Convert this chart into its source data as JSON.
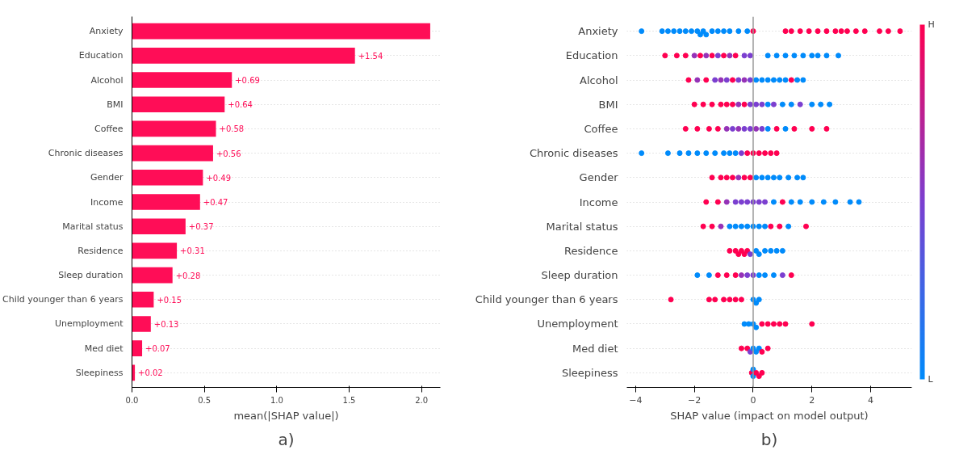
{
  "chart_data": [
    {
      "type": "bar",
      "orientation": "horizontal",
      "categories": [
        "Anxiety",
        "Education",
        "Alcohol",
        "BMI",
        "Coffee",
        "Chronic diseases",
        "Gender",
        "Income",
        "Marital status",
        "Residence",
        "Sleep duration",
        "Child younger than 6 years",
        "Unemployment",
        "Med diet",
        "Sleepiness"
      ],
      "values": [
        2.06,
        1.54,
        0.69,
        0.64,
        0.58,
        0.56,
        0.49,
        0.47,
        0.37,
        0.31,
        0.28,
        0.15,
        0.13,
        0.07,
        0.02
      ],
      "value_labels": [
        null,
        "+1.54",
        "+0.69",
        "+0.64",
        "+0.58",
        "+0.56",
        "+0.49",
        "+0.47",
        "+0.37",
        "+0.31",
        "+0.28",
        "+0.15",
        "+0.13",
        "+0.07",
        "+0.02"
      ],
      "color": "#ff0d57",
      "xlabel": "mean(|SHAP value|)",
      "xlim": [
        0,
        2.13
      ],
      "xticks": [
        {
          "value": 0,
          "label": "0.0"
        },
        {
          "value": 0.5,
          "label": "0.5"
        },
        {
          "value": 1,
          "label": "1.0"
        },
        {
          "value": 1.5,
          "label": "1.5"
        },
        {
          "value": 2,
          "label": "2.0"
        }
      ],
      "grid": "y",
      "annotations": [
        "a)"
      ]
    },
    {
      "type": "scatter",
      "orientation": "horizontal",
      "marker": "circle",
      "categories": [
        "Anxiety",
        "Education",
        "Alcohol",
        "BMI",
        "Coffee",
        "Chronic diseases",
        "Gender",
        "Income",
        "Marital status",
        "Residence",
        "Sleep duration",
        "Child younger than 6 years",
        "Unemployment",
        "Med diet",
        "Sleepiness"
      ],
      "series": [
        {
          "x": [
            "Anxiety",
            "Anxiety",
            "Anxiety",
            "Anxiety",
            "Anxiety",
            "Anxiety",
            "Anxiety",
            "Anxiety",
            "Anxiety",
            "Anxiety",
            "Anxiety",
            "Anxiety",
            "Anxiety",
            "Anxiety",
            "Anxiety",
            "Anxiety",
            "Anxiety",
            "Anxiety",
            "Anxiety",
            "Anxiety",
            "Anxiety",
            "Anxiety",
            "Anxiety",
            "Anxiety",
            "Anxiety",
            "Anxiety",
            "Anxiety",
            "Anxiety",
            "Anxiety",
            "Anxiety",
            "Anxiety",
            "Anxiety"
          ],
          "values": [
            -3.8,
            -3.1,
            -2.9,
            -2.7,
            -2.5,
            -2.3,
            -2.1,
            -1.9,
            -1.8,
            -1.7,
            -1.6,
            -1.4,
            -1.2,
            -1.0,
            -0.8,
            -0.5,
            -0.2,
            0.0,
            1.1,
            1.3,
            1.6,
            1.9,
            2.2,
            2.5,
            2.8,
            3.0,
            3.2,
            3.5,
            3.8,
            4.3,
            4.6,
            5.0
          ],
          "colors": [
            "#008bfb",
            "#008bfb",
            "#008bfb",
            "#008bfb",
            "#008bfb",
            "#008bfb",
            "#008bfb",
            "#008bfb",
            "#008bfb",
            "#008bfb",
            "#008bfb",
            "#008bfb",
            "#008bfb",
            "#008bfb",
            "#008bfb",
            "#008bfb",
            "#008bfb",
            "#ff0051",
            "#ff0051",
            "#ff0051",
            "#ff0051",
            "#ff0051",
            "#ff0051",
            "#ff0051",
            "#ff0051",
            "#ff0051",
            "#ff0051",
            "#ff0051",
            "#ff0051",
            "#ff0051",
            "#ff0051",
            "#ff0051"
          ]
        },
        {
          "x": [
            "Education",
            "Education",
            "Education",
            "Education",
            "Education",
            "Education",
            "Education",
            "Education",
            "Education",
            "Education",
            "Education",
            "Education",
            "Education",
            "Education",
            "Education",
            "Education",
            "Education",
            "Education",
            "Education",
            "Education",
            "Education",
            "Education"
          ],
          "values": [
            -3.0,
            -2.6,
            -2.3,
            -2.0,
            -1.8,
            -1.6,
            -1.4,
            -1.2,
            -1.0,
            -0.8,
            -0.6,
            -0.3,
            -0.1,
            0.5,
            0.8,
            1.1,
            1.4,
            1.7,
            2.0,
            2.2,
            2.5,
            2.9
          ],
          "colors": [
            "#ff0051",
            "#ff0051",
            "#ff0051",
            "#9532b7",
            "#ff0051",
            "#9532b7",
            "#ff0051",
            "#7b3fd0",
            "#ff0051",
            "#9532b7",
            "#ff0051",
            "#7b3fd0",
            "#7b3fd0",
            "#008bfb",
            "#008bfb",
            "#008bfb",
            "#008bfb",
            "#008bfb",
            "#008bfb",
            "#008bfb",
            "#008bfb",
            "#008bfb"
          ]
        },
        {
          "x": [
            "Alcohol",
            "Alcohol",
            "Alcohol",
            "Alcohol",
            "Alcohol",
            "Alcohol",
            "Alcohol",
            "Alcohol",
            "Alcohol",
            "Alcohol",
            "Alcohol",
            "Alcohol",
            "Alcohol",
            "Alcohol",
            "Alcohol",
            "Alcohol",
            "Alcohol",
            "Alcohol",
            "Alcohol"
          ],
          "values": [
            -2.2,
            -1.9,
            -1.6,
            -1.3,
            -1.1,
            -0.9,
            -0.7,
            -0.5,
            -0.3,
            -0.1,
            0.1,
            0.3,
            0.5,
            0.7,
            0.9,
            1.1,
            1.3,
            1.5,
            1.7
          ],
          "colors": [
            "#ff0051",
            "#9532b7",
            "#ff0051",
            "#7b3fd0",
            "#9532b7",
            "#7b3fd0",
            "#ff0051",
            "#7b3fd0",
            "#9532b7",
            "#7b3fd0",
            "#008bfb",
            "#008bfb",
            "#008bfb",
            "#008bfb",
            "#008bfb",
            "#008bfb",
            "#ff0051",
            "#008bfb",
            "#008bfb"
          ]
        },
        {
          "x": [
            "BMI",
            "BMI",
            "BMI",
            "BMI",
            "BMI",
            "BMI",
            "BMI",
            "BMI",
            "BMI",
            "BMI",
            "BMI",
            "BMI",
            "BMI",
            "BMI",
            "BMI",
            "BMI",
            "BMI",
            "BMI",
            "BMI"
          ],
          "values": [
            -2.0,
            -1.7,
            -1.4,
            -1.1,
            -0.9,
            -0.7,
            -0.5,
            -0.3,
            -0.1,
            0.1,
            0.3,
            0.5,
            0.7,
            1.0,
            1.3,
            1.6,
            2.0,
            2.3,
            2.6
          ],
          "colors": [
            "#ff0051",
            "#ff0051",
            "#ff0051",
            "#ff0051",
            "#ff0051",
            "#ff0051",
            "#9532b7",
            "#ff0051",
            "#7b3fd0",
            "#7b3fd0",
            "#7b3fd0",
            "#008bfb",
            "#7b3fd0",
            "#008bfb",
            "#008bfb",
            "#7b3fd0",
            "#008bfb",
            "#008bfb",
            "#008bfb"
          ]
        },
        {
          "x": [
            "Coffee",
            "Coffee",
            "Coffee",
            "Coffee",
            "Coffee",
            "Coffee",
            "Coffee",
            "Coffee",
            "Coffee",
            "Coffee",
            "Coffee",
            "Coffee",
            "Coffee",
            "Coffee",
            "Coffee",
            "Coffee",
            "Coffee"
          ],
          "values": [
            -2.3,
            -1.9,
            -1.5,
            -1.2,
            -0.9,
            -0.7,
            -0.5,
            -0.3,
            -0.1,
            0.1,
            0.3,
            0.5,
            0.8,
            1.1,
            1.4,
            2.0,
            2.5
          ],
          "colors": [
            "#ff0051",
            "#ff0051",
            "#ff0051",
            "#ff0051",
            "#9532b7",
            "#7b3fd0",
            "#9532b7",
            "#7b3fd0",
            "#7b3fd0",
            "#9532b7",
            "#7b3fd0",
            "#008bfb",
            "#ff0051",
            "#008bfb",
            "#ff0051",
            "#ff0051",
            "#ff0051"
          ]
        },
        {
          "x": [
            "Chronic diseases",
            "Chronic diseases",
            "Chronic diseases",
            "Chronic diseases",
            "Chronic diseases",
            "Chronic diseases",
            "Chronic diseases",
            "Chronic diseases",
            "Chronic diseases",
            "Chronic diseases",
            "Chronic diseases",
            "Chronic diseases",
            "Chronic diseases",
            "Chronic diseases",
            "Chronic diseases",
            "Chronic diseases",
            "Chronic diseases"
          ],
          "values": [
            -3.8,
            -2.9,
            -2.5,
            -2.2,
            -1.9,
            -1.6,
            -1.3,
            -1.0,
            -0.8,
            -0.6,
            -0.4,
            -0.2,
            0.0,
            0.2,
            0.4,
            0.6,
            0.8
          ],
          "colors": [
            "#008bfb",
            "#008bfb",
            "#008bfb",
            "#008bfb",
            "#008bfb",
            "#008bfb",
            "#008bfb",
            "#008bfb",
            "#008bfb",
            "#008bfb",
            "#7b3fd0",
            "#ff0051",
            "#ff0051",
            "#ff0051",
            "#ff0051",
            "#ff0051",
            "#ff0051"
          ]
        },
        {
          "x": [
            "Gender",
            "Gender",
            "Gender",
            "Gender",
            "Gender",
            "Gender",
            "Gender",
            "Gender",
            "Gender",
            "Gender",
            "Gender",
            "Gender",
            "Gender",
            "Gender",
            "Gender"
          ],
          "values": [
            -1.4,
            -1.1,
            -0.9,
            -0.7,
            -0.5,
            -0.3,
            -0.1,
            0.1,
            0.3,
            0.5,
            0.7,
            0.9,
            1.2,
            1.5,
            1.7
          ],
          "colors": [
            "#ff0051",
            "#ff0051",
            "#ff0051",
            "#ff0051",
            "#9532b7",
            "#ff0051",
            "#ff0051",
            "#008bfb",
            "#008bfb",
            "#008bfb",
            "#008bfb",
            "#008bfb",
            "#008bfb",
            "#008bfb",
            "#008bfb"
          ]
        },
        {
          "x": [
            "Income",
            "Income",
            "Income",
            "Income",
            "Income",
            "Income",
            "Income",
            "Income",
            "Income",
            "Income",
            "Income",
            "Income",
            "Income",
            "Income",
            "Income",
            "Income",
            "Income",
            "Income"
          ],
          "values": [
            -1.6,
            -1.2,
            -0.9,
            -0.6,
            -0.4,
            -0.2,
            0.0,
            0.2,
            0.4,
            0.7,
            1.0,
            1.3,
            1.6,
            2.0,
            2.4,
            2.8,
            3.3,
            3.6
          ],
          "colors": [
            "#ff0051",
            "#ff0051",
            "#9532b7",
            "#7b3fd0",
            "#7b3fd0",
            "#7b3fd0",
            "#7b3fd0",
            "#7b3fd0",
            "#7b3fd0",
            "#008bfb",
            "#ff0051",
            "#008bfb",
            "#008bfb",
            "#008bfb",
            "#008bfb",
            "#008bfb",
            "#008bfb",
            "#008bfb"
          ]
        },
        {
          "x": [
            "Marital status",
            "Marital status",
            "Marital status",
            "Marital status",
            "Marital status",
            "Marital status",
            "Marital status",
            "Marital status",
            "Marital status",
            "Marital status",
            "Marital status",
            "Marital status",
            "Marital status",
            "Marital status"
          ],
          "values": [
            -1.7,
            -1.4,
            -1.1,
            -0.8,
            -0.6,
            -0.4,
            -0.2,
            0.0,
            0.2,
            0.4,
            0.6,
            0.9,
            1.2,
            1.8
          ],
          "colors": [
            "#ff0051",
            "#ff0051",
            "#9532b7",
            "#008bfb",
            "#008bfb",
            "#008bfb",
            "#008bfb",
            "#008bfb",
            "#008bfb",
            "#008bfb",
            "#ff0051",
            "#ff0051",
            "#008bfb",
            "#ff0051"
          ]
        },
        {
          "x": [
            "Residence",
            "Residence",
            "Residence",
            "Residence",
            "Residence",
            "Residence",
            "Residence",
            "Residence",
            "Residence",
            "Residence",
            "Residence",
            "Residence",
            "Residence"
          ],
          "values": [
            -0.8,
            -0.6,
            -0.5,
            -0.4,
            -0.3,
            -0.2,
            -0.1,
            0.1,
            0.2,
            0.4,
            0.6,
            0.8,
            1.0
          ],
          "colors": [
            "#ff0051",
            "#ff0051",
            "#ff0051",
            "#ff0051",
            "#ff0051",
            "#ff0051",
            "#7b3fd0",
            "#008bfb",
            "#008bfb",
            "#008bfb",
            "#008bfb",
            "#008bfb",
            "#008bfb"
          ]
        },
        {
          "x": [
            "Sleep duration",
            "Sleep duration",
            "Sleep duration",
            "Sleep duration",
            "Sleep duration",
            "Sleep duration",
            "Sleep duration",
            "Sleep duration",
            "Sleep duration",
            "Sleep duration",
            "Sleep duration",
            "Sleep duration",
            "Sleep duration"
          ],
          "values": [
            -1.9,
            -1.5,
            -1.2,
            -0.9,
            -0.6,
            -0.4,
            -0.2,
            0.0,
            0.2,
            0.4,
            0.7,
            1.0,
            1.3
          ],
          "colors": [
            "#008bfb",
            "#008bfb",
            "#ff0051",
            "#ff0051",
            "#ff0051",
            "#9532b7",
            "#7b3fd0",
            "#7b3fd0",
            "#008bfb",
            "#008bfb",
            "#008bfb",
            "#7b3fd0",
            "#ff0051"
          ]
        },
        {
          "x": [
            "Child younger than 6 years",
            "Child younger than 6 years",
            "Child younger than 6 years",
            "Child younger than 6 years",
            "Child younger than 6 years",
            "Child younger than 6 years",
            "Child younger than 6 years",
            "Child younger than 6 years",
            "Child younger than 6 years",
            "Child younger than 6 years"
          ],
          "values": [
            -2.8,
            -1.5,
            -1.3,
            -1.0,
            -0.8,
            -0.6,
            -0.4,
            0.0,
            0.1,
            0.2
          ],
          "colors": [
            "#ff0051",
            "#ff0051",
            "#ff0051",
            "#ff0051",
            "#ff0051",
            "#ff0051",
            "#ff0051",
            "#008bfb",
            "#008bfb",
            "#008bfb"
          ]
        },
        {
          "x": [
            "Unemployment",
            "Unemployment",
            "Unemployment",
            "Unemployment",
            "Unemployment",
            "Unemployment",
            "Unemployment",
            "Unemployment",
            "Unemployment",
            "Unemployment"
          ],
          "values": [
            -0.3,
            -0.15,
            0.0,
            0.1,
            0.3,
            0.5,
            0.7,
            0.9,
            1.1,
            2.0
          ],
          "colors": [
            "#008bfb",
            "#008bfb",
            "#008bfb",
            "#008bfb",
            "#ff0051",
            "#ff0051",
            "#ff0051",
            "#ff0051",
            "#ff0051",
            "#ff0051"
          ]
        },
        {
          "x": [
            "Med diet",
            "Med diet",
            "Med diet",
            "Med diet",
            "Med diet",
            "Med diet",
            "Med diet",
            "Med diet"
          ],
          "values": [
            -0.4,
            -0.2,
            -0.1,
            0.0,
            0.1,
            0.2,
            0.3,
            0.5
          ],
          "colors": [
            "#ff0051",
            "#ff0051",
            "#7b3fd0",
            "#008bfb",
            "#008bfb",
            "#008bfb",
            "#ff0051",
            "#ff0051"
          ]
        },
        {
          "x": [
            "Sleepiness",
            "Sleepiness",
            "Sleepiness",
            "Sleepiness",
            "Sleepiness",
            "Sleepiness"
          ],
          "values": [
            -0.05,
            0.0,
            0.0,
            0.1,
            0.2,
            0.3
          ],
          "colors": [
            "#ff0051",
            "#008bfb",
            "#008bfb",
            "#ff0051",
            "#ff0051",
            "#ff0051"
          ]
        }
      ],
      "xlabel": "SHAP value (impact on model output)",
      "xlim": [
        -4.3,
        5.4
      ],
      "xticks": [
        -4,
        -2,
        0,
        2,
        4
      ],
      "ref_lines": [
        {
          "axis": "x",
          "value": 0,
          "color": "#999999"
        }
      ],
      "clim": [
        0,
        1
      ],
      "cticks": [
        {
          "value": 0,
          "label": "L"
        },
        {
          "value": 1,
          "label": "H"
        }
      ],
      "grid": "y",
      "annotations": [
        "b)"
      ]
    }
  ]
}
